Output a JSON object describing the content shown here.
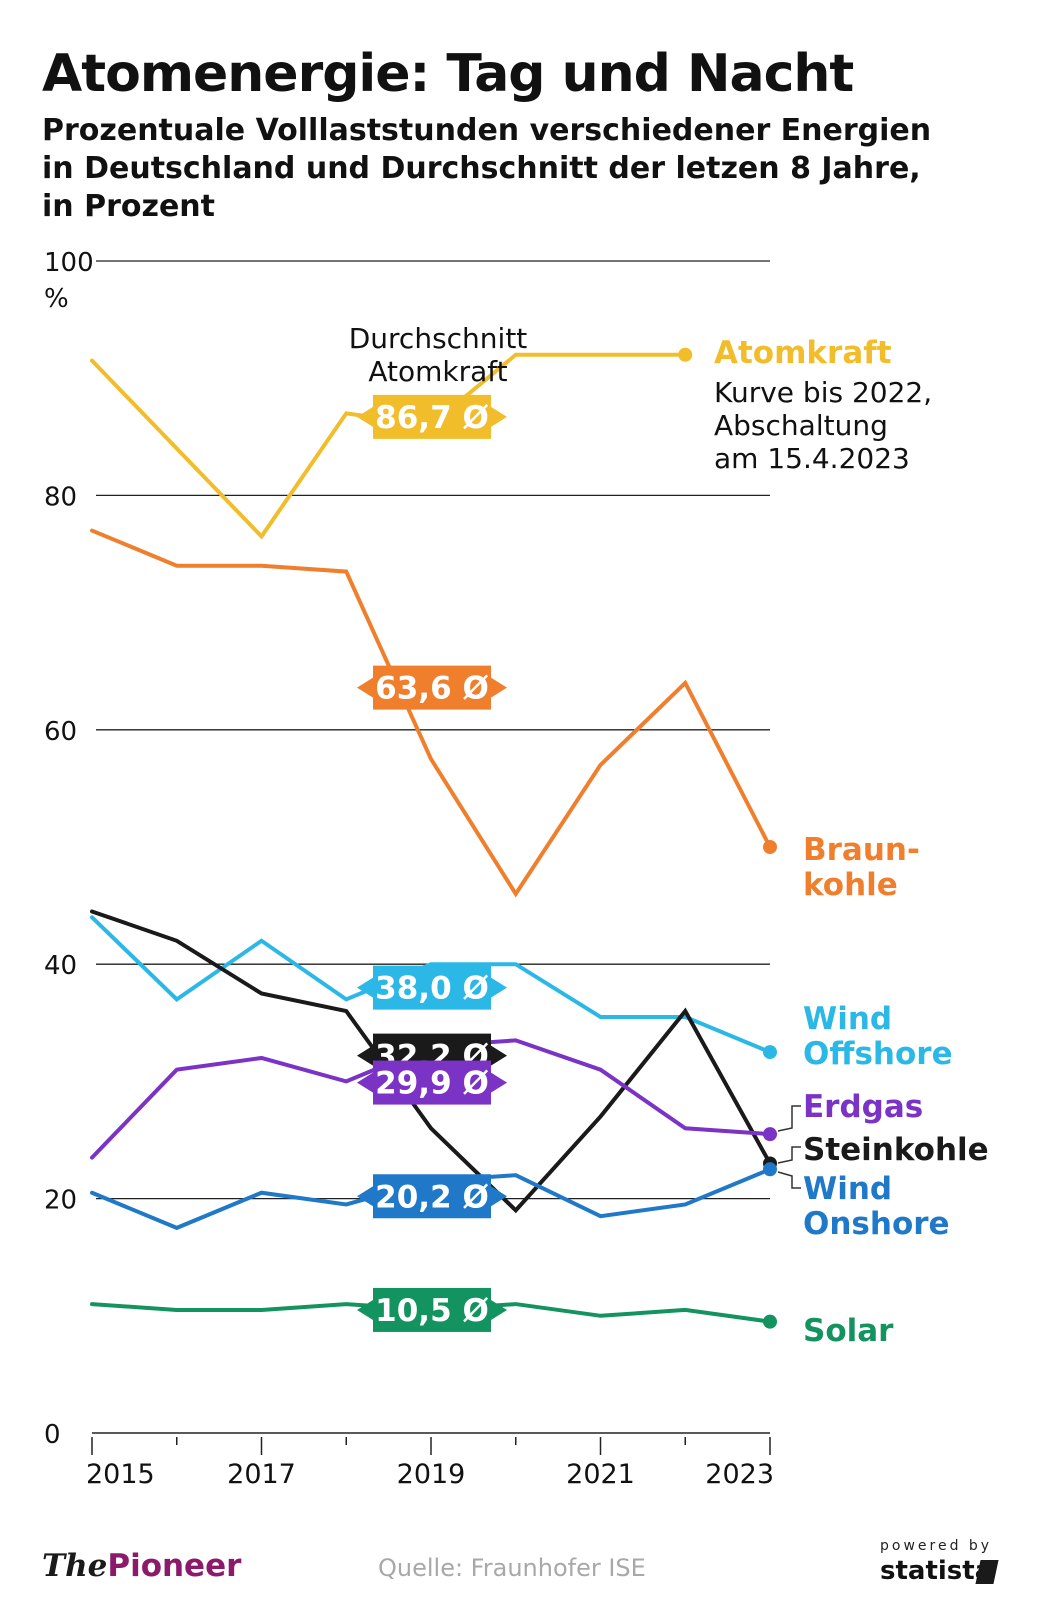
{
  "header": {
    "title": "Atomenergie: Tag und Nacht",
    "subtitle": "Prozentuale Volllaststunden verschiedener Energien\nin Deutschland und Durchschnitt der letzen 8 Jahre,\nin Prozent"
  },
  "chart_data": {
    "type": "line",
    "x": [
      2015,
      2016,
      2017,
      2018,
      2019,
      2020,
      2021,
      2022,
      2023
    ],
    "x_tick_labels": [
      "2015",
      "2017",
      "2019",
      "2021",
      "2023"
    ],
    "y_ticks": [
      "0",
      "20",
      "40",
      "60",
      "80",
      "100"
    ],
    "ylabel": "%",
    "ylim": [
      0,
      100
    ],
    "grid": true,
    "series": [
      {
        "name": "Atomkraft",
        "color": "#f2bd2b",
        "avg_label": "86,7 Ø",
        "values": [
          91.5,
          84,
          76.5,
          87,
          86,
          92,
          92,
          92,
          null
        ]
      },
      {
        "name": "Braun-\nkohle",
        "color": "#f07f2d",
        "avg_label": "63,6 Ø",
        "values": [
          77,
          74,
          74,
          73.5,
          57.5,
          46,
          57,
          64,
          50
        ]
      },
      {
        "name": "Wind\nOffshore",
        "color": "#2bb8e6",
        "avg_label": "38,0 Ø",
        "values": [
          44,
          37,
          42,
          37,
          40,
          40,
          35.5,
          35.5,
          32.5
        ]
      },
      {
        "name": "Steinkohle",
        "color": "#1a1a1a",
        "avg_label": "32,2 Ø",
        "values": [
          44.5,
          42,
          37.5,
          36,
          26,
          19,
          27,
          36,
          23
        ]
      },
      {
        "name": "Erdgas",
        "color": "#7b33c6",
        "avg_label": "29,9 Ø",
        "values": [
          23.5,
          31,
          32,
          30,
          33,
          33.5,
          31,
          26,
          25.5
        ]
      },
      {
        "name": "Wind\nOnshore",
        "color": "#1f78c8",
        "avg_label": "20,2 Ø",
        "values": [
          20.5,
          17.5,
          20.5,
          19.5,
          21.5,
          22,
          18.5,
          19.5,
          22.5
        ]
      },
      {
        "name": "Solar",
        "color": "#13935f",
        "avg_label": "10,5 Ø",
        "values": [
          11,
          10.5,
          10.5,
          11,
          10.5,
          11,
          10,
          10.5,
          9.5
        ]
      }
    ],
    "annotations": {
      "avg_heading": "Durchschnitt\nAtomkraft",
      "atom_note": "Kurve bis 2022,\nAbschaltung\nam 15.4.2023"
    }
  },
  "footer": {
    "brand_prefix": "The",
    "brand_strong": "Pioneer",
    "source": "Quelle: Fraunhofer ISE",
    "powered": "powered by",
    "statista": "statista"
  }
}
